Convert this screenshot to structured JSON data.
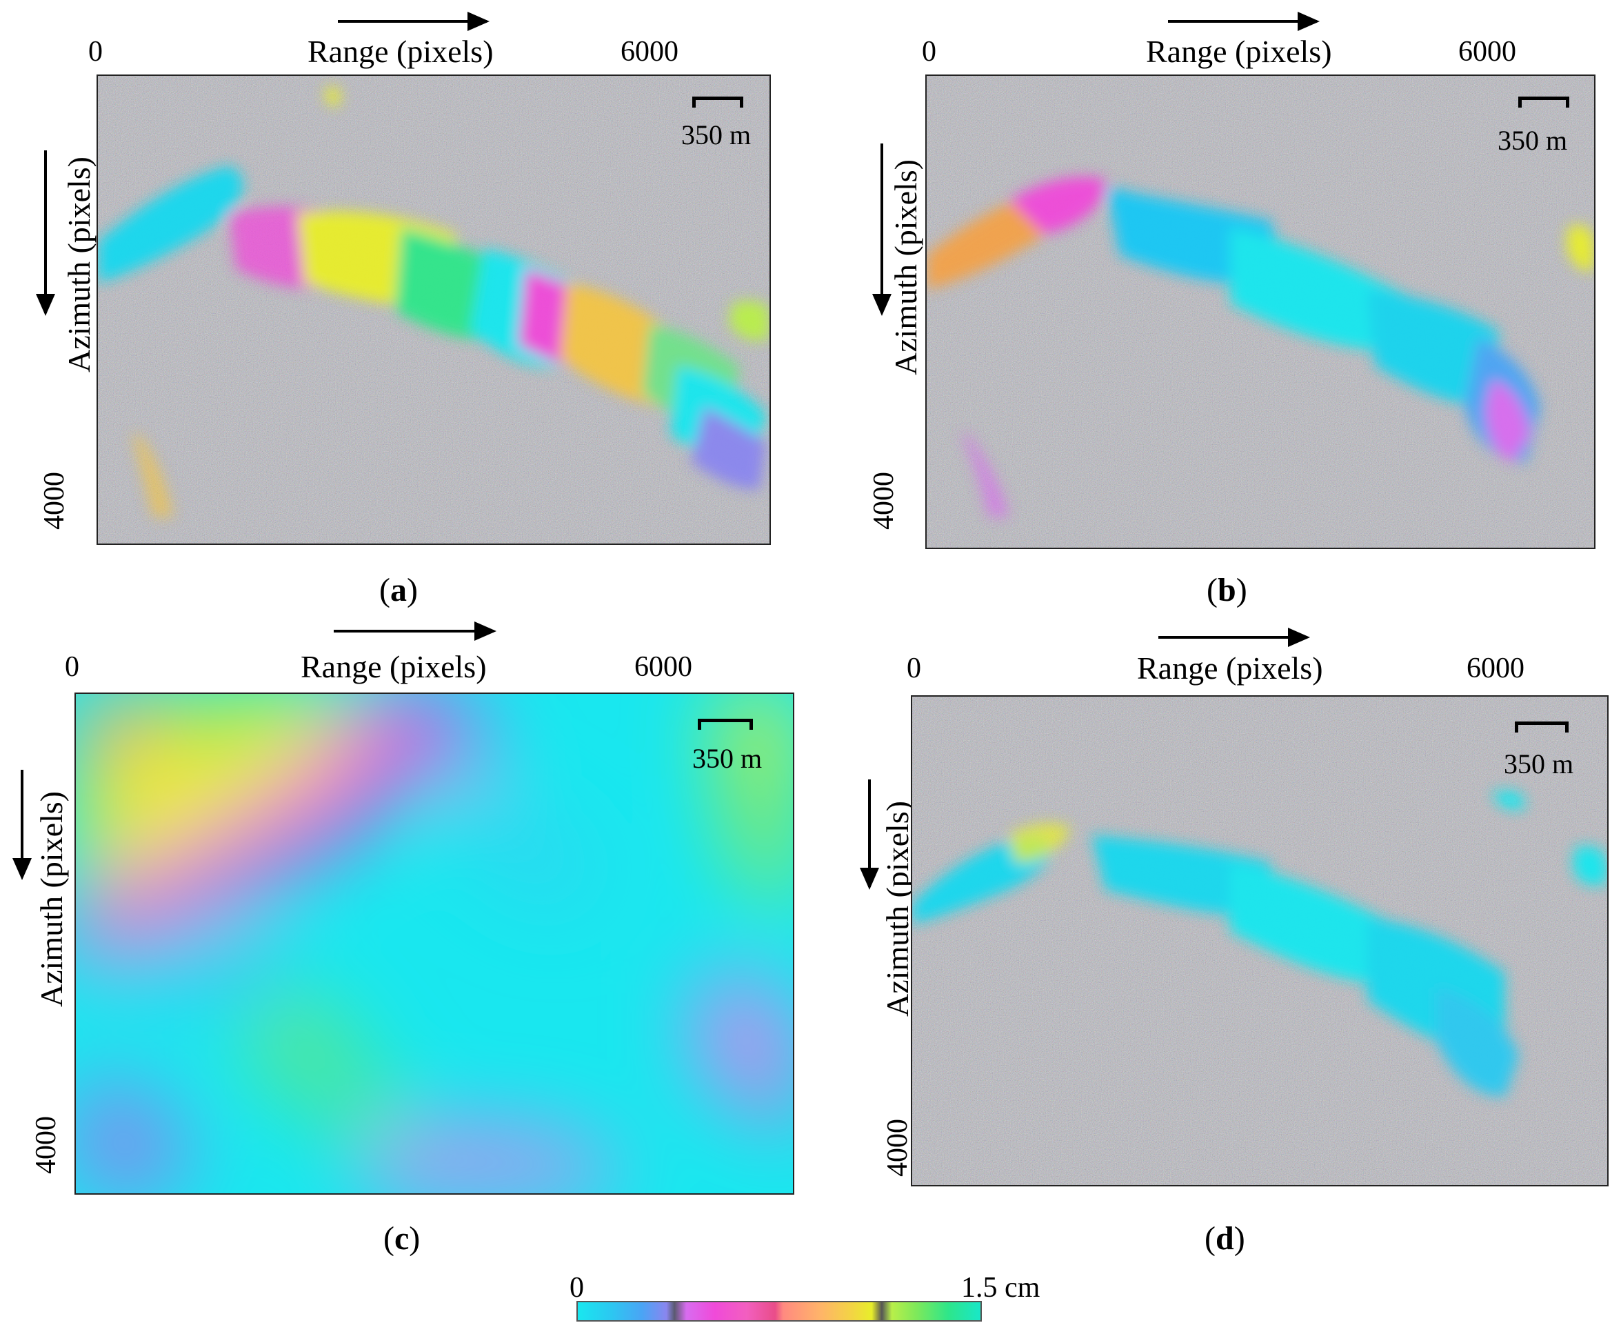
{
  "axes": {
    "range_label": "Range (pixels)",
    "azimuth_label": "Azimuth (pixels)",
    "x_tick_start": "0",
    "x_tick_end": "6000",
    "y_tick": "4000",
    "scale_label": "350 m"
  },
  "panels": [
    {
      "id": "a",
      "caption_open": "(",
      "caption_letter": "a",
      "caption_close": ")"
    },
    {
      "id": "b",
      "caption_open": "(",
      "caption_letter": "b",
      "caption_close": ")"
    },
    {
      "id": "c",
      "caption_open": "(",
      "caption_letter": "c",
      "caption_close": ")"
    },
    {
      "id": "d",
      "caption_open": "(",
      "caption_letter": "d",
      "caption_close": ")"
    }
  ],
  "colorbar": {
    "min_label": "0",
    "max_label": "1.5 cm",
    "range": [
      0,
      1.5
    ],
    "unit": "cm"
  },
  "colors": {
    "cyan": "#19e7ef",
    "blue": "#4aa4f5",
    "magenta": "#f04ad9",
    "yellow": "#e8ee2a",
    "green": "#2ee68a",
    "noise_gray": "#a9a9a9"
  }
}
